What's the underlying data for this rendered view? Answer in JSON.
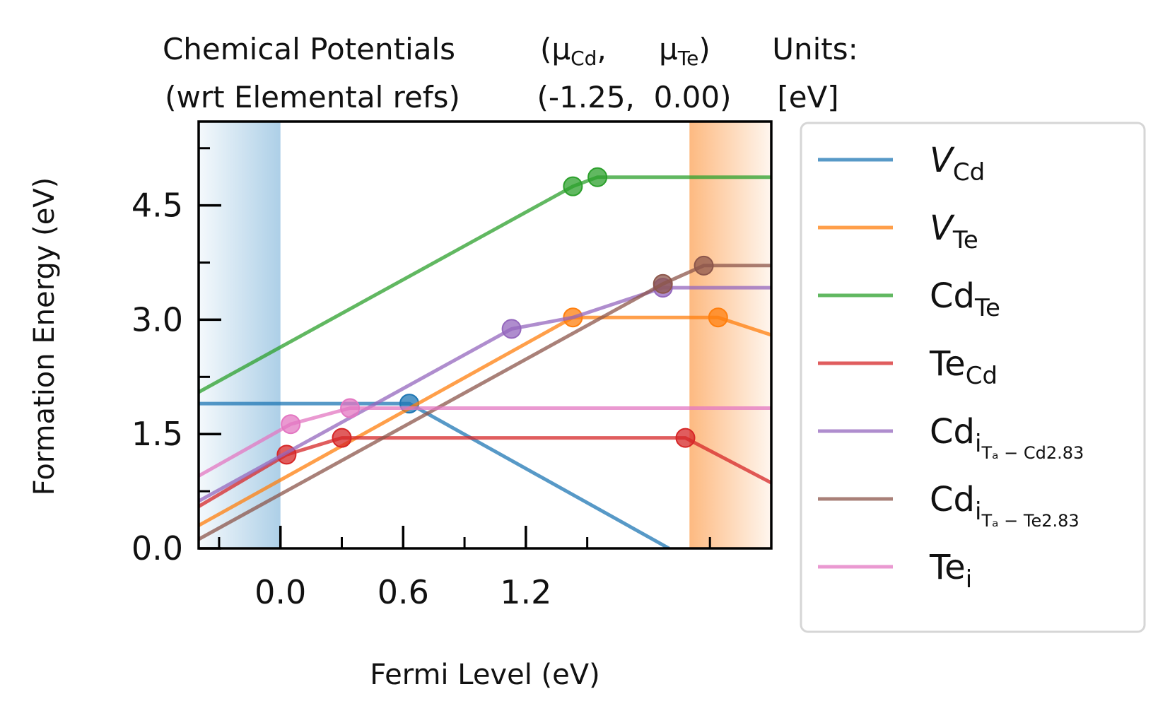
{
  "header": {
    "chem_pot_line1": "Chemical Potentials",
    "chem_pot_line2": "(wrt Elemental refs)",
    "mu_open": "(μ",
    "mu_cd_sub": "Cd",
    "mu_comma": ",",
    "mu_te": "μ",
    "mu_te_sub": "Te",
    "mu_close": ")",
    "values": "(-1.25,  0.00)",
    "units_line1": "Units:",
    "units_line2": "[eV]"
  },
  "chart_data": {
    "type": "line",
    "xlabel": "Fermi Level (eV)",
    "ylabel": "Formation Energy (eV)",
    "xlim": [
      -0.4,
      2.4
    ],
    "ylim": [
      0.0,
      5.6
    ],
    "xticks": [
      0.0,
      0.6,
      1.2
    ],
    "xtick_labels": [
      "0.0",
      "0.6",
      "1.2"
    ],
    "xticks_minor": [
      -0.3,
      0.3,
      0.9,
      1.5,
      2.1
    ],
    "yticks": [
      0.0,
      1.5,
      3.0,
      4.5
    ],
    "ytick_labels": [
      "0.0",
      "1.5",
      "3.0",
      "4.5"
    ],
    "yticks_minor": [
      0.75,
      2.25,
      3.75,
      5.25
    ],
    "vbm": 0.0,
    "cbm": 2.0,
    "vbm_color": "#a9cde6",
    "cbm_color": "#fdb67a",
    "grid": false,
    "legend_position": "outside-right",
    "series": [
      {
        "name": "V",
        "name_sub": "Cd",
        "name_subsub": "",
        "italic": true,
        "color": "#1f77b4",
        "x": [
          -0.4,
          0.63,
          1.9
        ],
        "y": [
          1.9,
          1.9,
          0.0
        ],
        "markers_x": [
          0.63
        ],
        "markers_y": [
          1.9
        ]
      },
      {
        "name": "V",
        "name_sub": "Te",
        "name_subsub": "",
        "italic": true,
        "color": "#ff7f0e",
        "x": [
          -0.4,
          1.43,
          2.14,
          2.4
        ],
        "y": [
          0.3,
          3.03,
          3.03,
          2.8
        ],
        "markers_x": [
          1.43,
          2.14
        ],
        "markers_y": [
          3.03,
          3.03
        ]
      },
      {
        "name": "Cd",
        "name_sub": "Te",
        "name_subsub": "",
        "italic": false,
        "color": "#2ca02c",
        "x": [
          -0.4,
          1.43,
          1.55,
          2.4
        ],
        "y": [
          2.05,
          4.75,
          4.87,
          4.87
        ],
        "markers_x": [
          1.43,
          1.55
        ],
        "markers_y": [
          4.75,
          4.87
        ]
      },
      {
        "name": "Te",
        "name_sub": "Cd",
        "name_subsub": "",
        "italic": false,
        "color": "#d62728",
        "x": [
          -0.4,
          0.03,
          0.3,
          1.98,
          2.4
        ],
        "y": [
          0.55,
          1.23,
          1.45,
          1.45,
          0.86
        ],
        "markers_x": [
          0.03,
          0.3,
          1.98
        ],
        "markers_y": [
          1.23,
          1.45,
          1.45
        ]
      },
      {
        "name": "Cd",
        "name_sub": "i",
        "name_subsub": "Tₐ − Cd2.83",
        "italic": false,
        "color": "#9467bd",
        "x": [
          -0.4,
          1.13,
          1.43,
          1.87,
          2.4
        ],
        "y": [
          0.62,
          2.88,
          3.03,
          3.42,
          3.42
        ],
        "markers_x": [
          1.13,
          1.87
        ],
        "markers_y": [
          2.88,
          3.42
        ]
      },
      {
        "name": "Cd",
        "name_sub": "i",
        "name_subsub": "Tₐ − Te2.83",
        "italic": false,
        "color": "#8c564b",
        "x": [
          -0.4,
          1.87,
          2.07,
          2.4
        ],
        "y": [
          0.12,
          3.47,
          3.71,
          3.71
        ],
        "markers_x": [
          1.87,
          2.07
        ],
        "markers_y": [
          3.47,
          3.71
        ]
      },
      {
        "name": "Te",
        "name_sub": "i",
        "name_subsub": "",
        "italic": false,
        "color": "#e377c2",
        "x": [
          -0.4,
          0.05,
          0.34,
          2.4
        ],
        "y": [
          0.95,
          1.63,
          1.84,
          1.84
        ],
        "markers_x": [
          0.05,
          0.34
        ],
        "markers_y": [
          1.63,
          1.84
        ]
      }
    ]
  }
}
